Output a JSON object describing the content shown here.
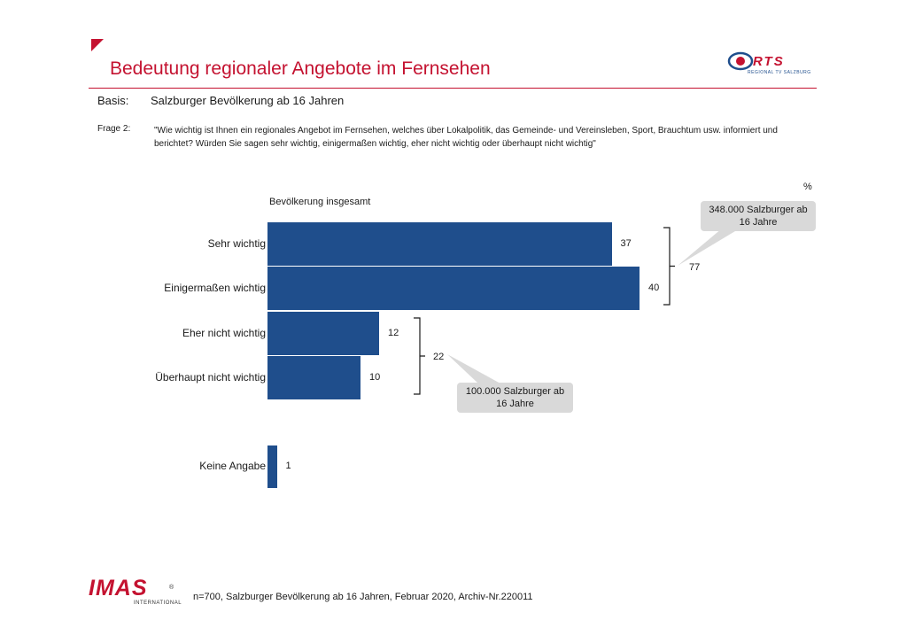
{
  "header": {
    "title": "Bedeutung regionaler Angebote im Fernsehen",
    "basis_label": "Basis:",
    "basis_text": "Salzburger Bevölkerung ab 16 Jahren",
    "frage_label": "Frage 2:",
    "frage_text": "\"Wie wichtig ist Ihnen ein regionales Angebot im Fernsehen, welches über Lokalpolitik, das Gemeinde- und Vereinsleben, Sport, Brauchtum usw. informiert und berichtet? Würden Sie sagen sehr wichtig, einigermaßen wichtig, eher nicht wichtig oder überhaupt nicht wichtig\""
  },
  "logo_rts": {
    "name": "RTS",
    "subtitle": "REGIONAL TV SALZBURG",
    "icon": "eye-logo-icon"
  },
  "logo_imas": {
    "name": "IMAS",
    "subtitle": "INTERNATIONAL",
    "registered": "®"
  },
  "chart_data": {
    "type": "bar",
    "orientation": "horizontal",
    "unit": "%",
    "series_label": "Bevölkerung insgesamt",
    "categories": [
      "Sehr wichtig",
      "Einigermaßen wichtig",
      "Eher nicht wichtig",
      "Überhaupt nicht wichtig",
      "Keine Angabe"
    ],
    "values": [
      37,
      40,
      12,
      10,
      1
    ],
    "bar_color": "#1f4e8c",
    "groups": [
      {
        "members": [
          "Sehr wichtig",
          "Einigermaßen wichtig"
        ],
        "sum": 77,
        "callout": "348.000 Salzburger ab 16 Jahre"
      },
      {
        "members": [
          "Eher nicht wichtig",
          "Überhaupt nicht wichtig"
        ],
        "sum": 22,
        "callout": "100.000 Salzburger ab 16 Jahre"
      }
    ]
  },
  "footer": {
    "text": "n=700, Salzburger Bevölkerung ab 16 Jahren, Februar 2020, Archiv-Nr.220011"
  }
}
